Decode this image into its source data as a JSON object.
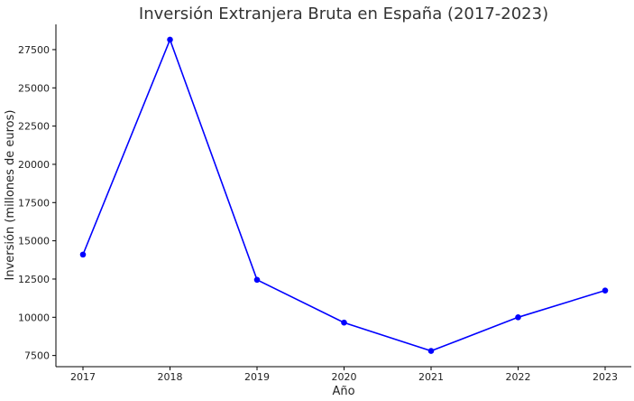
{
  "chart_data": {
    "type": "line",
    "title": "Inversión Extranjera Bruta en España (2017-2023)",
    "xlabel": "Año",
    "ylabel": "Inversión (millones de euros)",
    "categories": [
      "2017",
      "2018",
      "2019",
      "2020",
      "2021",
      "2022",
      "2023"
    ],
    "series": [
      {
        "values": [
          14100,
          28150,
          12450,
          9650,
          7800,
          10000,
          11750
        ],
        "color": "#0000ff"
      }
    ],
    "yticks": [
      7500,
      10000,
      12500,
      15000,
      17500,
      20000,
      22500,
      25000,
      27500
    ],
    "ylim": [
      6770,
      29150
    ],
    "grid": false,
    "legend": "none"
  }
}
